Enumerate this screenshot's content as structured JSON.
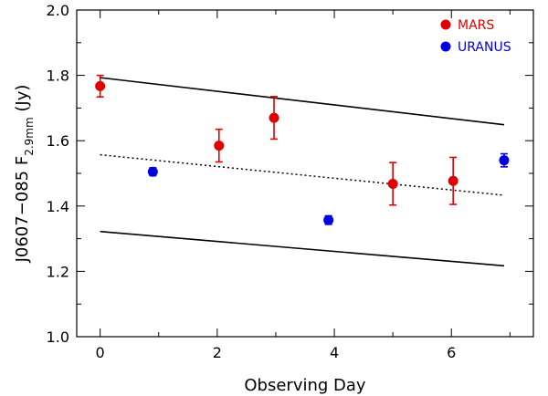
{
  "chart_data": {
    "type": "scatter",
    "title": "",
    "xlabel": "Observing Day",
    "ylabel_main": "J0607−085  F",
    "ylabel_sub": "2.9mm",
    "ylabel_unit": "  (Jy)",
    "xlim": [
      -0.4,
      7.4
    ],
    "ylim": [
      1.0,
      2.0
    ],
    "xticks": [
      0,
      2,
      4,
      6
    ],
    "xtick_labels": [
      "0",
      "2",
      "4",
      "6"
    ],
    "xminor": [
      1,
      3,
      5,
      7
    ],
    "yticks": [
      1.0,
      1.2,
      1.4,
      1.6,
      1.8,
      2.0
    ],
    "ytick_labels": [
      "1.0",
      "1.2",
      "1.4",
      "1.6",
      "1.8",
      "2.0"
    ],
    "yminor": [
      1.1,
      1.3,
      1.5,
      1.7,
      1.9
    ],
    "grid": false,
    "legend_position": "top-right",
    "series": [
      {
        "name": "MARS",
        "color": "#e00000",
        "points": [
          {
            "x": 0.0,
            "y": 1.767,
            "err": 0.033
          },
          {
            "x": 2.03,
            "y": 1.585,
            "err": 0.05
          },
          {
            "x": 2.97,
            "y": 1.67,
            "err": 0.065
          },
          {
            "x": 5.0,
            "y": 1.468,
            "err": 0.065
          },
          {
            "x": 6.03,
            "y": 1.477,
            "err": 0.072
          }
        ]
      },
      {
        "name": "URANUS",
        "color": "#0000e0",
        "points": [
          {
            "x": 0.9,
            "y": 1.505,
            "err": 0.012
          },
          {
            "x": 3.9,
            "y": 1.357,
            "err": 0.013
          },
          {
            "x": 6.9,
            "y": 1.54,
            "err": 0.02
          }
        ]
      }
    ],
    "lines": [
      {
        "name": "upper-bound",
        "style": "solid",
        "x": [
          0.0,
          6.9
        ],
        "y": [
          1.793,
          1.649
        ]
      },
      {
        "name": "fit",
        "style": "dotted",
        "x": [
          0.0,
          6.9
        ],
        "y": [
          1.557,
          1.433
        ]
      },
      {
        "name": "lower-bound",
        "style": "solid",
        "x": [
          0.0,
          6.9
        ],
        "y": [
          1.322,
          1.217
        ]
      }
    ]
  }
}
